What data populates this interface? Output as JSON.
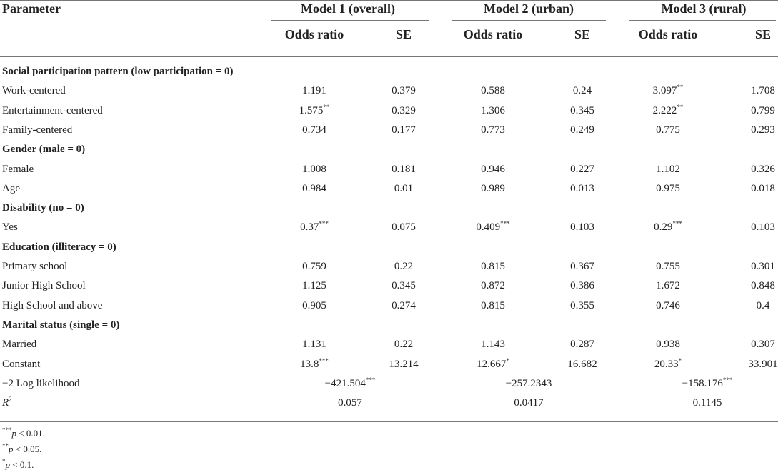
{
  "header": {
    "parameter": "Parameter",
    "models": [
      {
        "title": "Model 1 (overall)",
        "columns": [
          "Odds ratio",
          "SE"
        ]
      },
      {
        "title": "Model 2 (urban)",
        "columns": [
          "Odds ratio",
          "SE"
        ]
      },
      {
        "title": "Model 3 (rural)",
        "columns": [
          "Odds ratio",
          "SE"
        ]
      }
    ]
  },
  "rows": [
    {
      "label": "Social participation pattern (low participation = 0)"
    },
    {
      "label": "Work-centered",
      "cells": [
        {
          "text": "1.191"
        },
        {
          "text": "0.379"
        },
        {
          "text": "0.588"
        },
        {
          "text": "0.24"
        },
        {
          "text": "3.097",
          "sig": "**"
        },
        {
          "text": "1.708"
        }
      ]
    },
    {
      "label": "Entertainment-centered",
      "cells": [
        {
          "text": "1.575",
          "sig": "**"
        },
        {
          "text": "0.329"
        },
        {
          "text": "1.306"
        },
        {
          "text": "0.345"
        },
        {
          "text": "2.222",
          "sig": "**"
        },
        {
          "text": "0.799"
        }
      ]
    },
    {
      "label": "Family-centered",
      "cells": [
        {
          "text": "0.734"
        },
        {
          "text": "0.177"
        },
        {
          "text": "0.773"
        },
        {
          "text": "0.249"
        },
        {
          "text": "0.775"
        },
        {
          "text": "0.293"
        }
      ]
    },
    {
      "label": "Gender (male = 0)"
    },
    {
      "label": "Female",
      "cells": [
        {
          "text": "1.008"
        },
        {
          "text": "0.181"
        },
        {
          "text": "0.946"
        },
        {
          "text": "0.227"
        },
        {
          "text": "1.102"
        },
        {
          "text": "0.326"
        }
      ]
    },
    {
      "label": "Age",
      "cells": [
        {
          "text": "0.984"
        },
        {
          "text": "0.01"
        },
        {
          "text": "0.989"
        },
        {
          "text": "0.013"
        },
        {
          "text": "0.975"
        },
        {
          "text": "0.018"
        }
      ]
    },
    {
      "label": "Disability (no = 0)"
    },
    {
      "label": "Yes",
      "cells": [
        {
          "text": "0.37",
          "sig": "***"
        },
        {
          "text": "0.075"
        },
        {
          "text": "0.409",
          "sig": "***"
        },
        {
          "text": "0.103"
        },
        {
          "text": "0.29",
          "sig": "***"
        },
        {
          "text": "0.103"
        }
      ]
    },
    {
      "label": "Education (illiteracy = 0)"
    },
    {
      "label": "Primary school",
      "cells": [
        {
          "text": "0.759"
        },
        {
          "text": "0.22"
        },
        {
          "text": "0.815"
        },
        {
          "text": "0.367"
        },
        {
          "text": "0.755"
        },
        {
          "text": "0.301"
        }
      ]
    },
    {
      "label": "Junior High School",
      "cells": [
        {
          "text": "1.125"
        },
        {
          "text": "0.345"
        },
        {
          "text": "0.872"
        },
        {
          "text": "0.386"
        },
        {
          "text": "1.672"
        },
        {
          "text": "0.848"
        }
      ]
    },
    {
      "label": "High School and above",
      "cells": [
        {
          "text": "0.905"
        },
        {
          "text": "0.274"
        },
        {
          "text": "0.815"
        },
        {
          "text": "0.355"
        },
        {
          "text": "0.746"
        },
        {
          "text": "0.4"
        }
      ]
    },
    {
      "label": "Marital status (single = 0)"
    },
    {
      "label": "Married",
      "cells": [
        {
          "text": "1.131"
        },
        {
          "text": "0.22"
        },
        {
          "text": "1.143"
        },
        {
          "text": "0.287"
        },
        {
          "text": "0.938"
        },
        {
          "text": "0.307"
        }
      ]
    },
    {
      "label": "Constant",
      "cells": [
        {
          "text": "13.8",
          "sig": "***"
        },
        {
          "text": "13.214"
        },
        {
          "text": "12.667",
          "sig": "*"
        },
        {
          "text": "16.682"
        },
        {
          "text": "20.33",
          "sig": "*"
        },
        {
          "text": "33.901"
        }
      ]
    },
    {
      "label": "−2 Log likelihood",
      "spans": [
        {
          "text": "−421.504",
          "sig": "***"
        },
        {
          "text": "−257.2343"
        },
        {
          "text": "−158.176",
          "sig": "***"
        }
      ]
    },
    {
      "label": "R",
      "label_sup": "2",
      "spans": [
        {
          "text": "0.057"
        },
        {
          "text": "0.0417"
        },
        {
          "text": "0.1145"
        }
      ]
    }
  ],
  "footnotes": [
    {
      "sig": "***",
      "var": "p",
      "text": "< 0.01."
    },
    {
      "sig": "**",
      "var": "p",
      "text": "< 0.05."
    },
    {
      "sig": "*",
      "var": "p",
      "text": "< 0.1."
    }
  ]
}
